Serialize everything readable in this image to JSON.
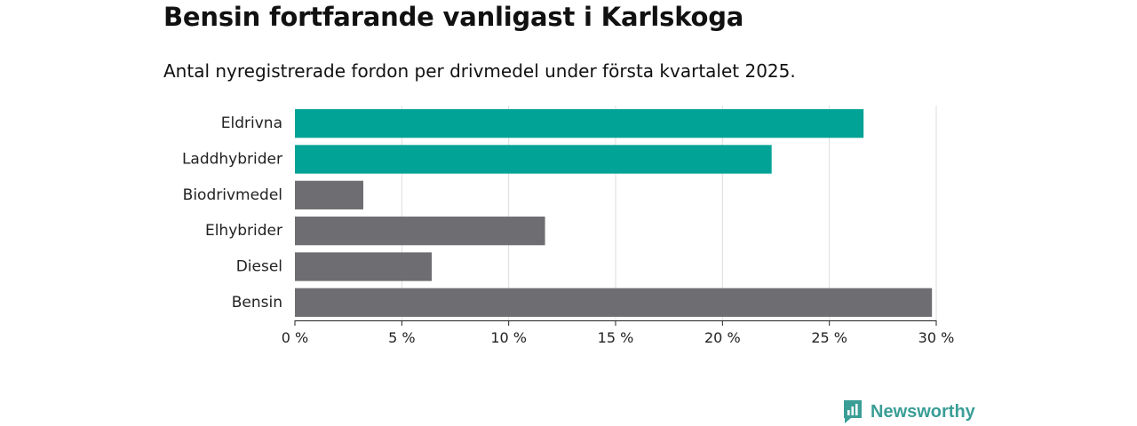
{
  "title": "Bensin fortfarande vanligast i Karlskoga",
  "subtitle": "Antal nyregistrerade fordon per drivmedel under första kvartalet 2025.",
  "brand": {
    "name": "Newsworthy"
  },
  "colors": {
    "highlight": "#00a396",
    "default": "#6e6d72",
    "grid": "#dddddd",
    "brand": "#3a9e96"
  },
  "chart_data": {
    "type": "bar",
    "orientation": "horizontal",
    "categories": [
      "Eldrivna",
      "Laddhybrider",
      "Biodrivmedel",
      "Elhybrider",
      "Diesel",
      "Bensin"
    ],
    "values": [
      26.6,
      22.3,
      3.2,
      11.7,
      6.4,
      29.8
    ],
    "highlighted": [
      true,
      true,
      false,
      false,
      false,
      false
    ],
    "xlim": [
      0,
      30
    ],
    "xticks": [
      0,
      5,
      10,
      15,
      20,
      25,
      30
    ],
    "tick_suffix": " %",
    "grid": true
  }
}
